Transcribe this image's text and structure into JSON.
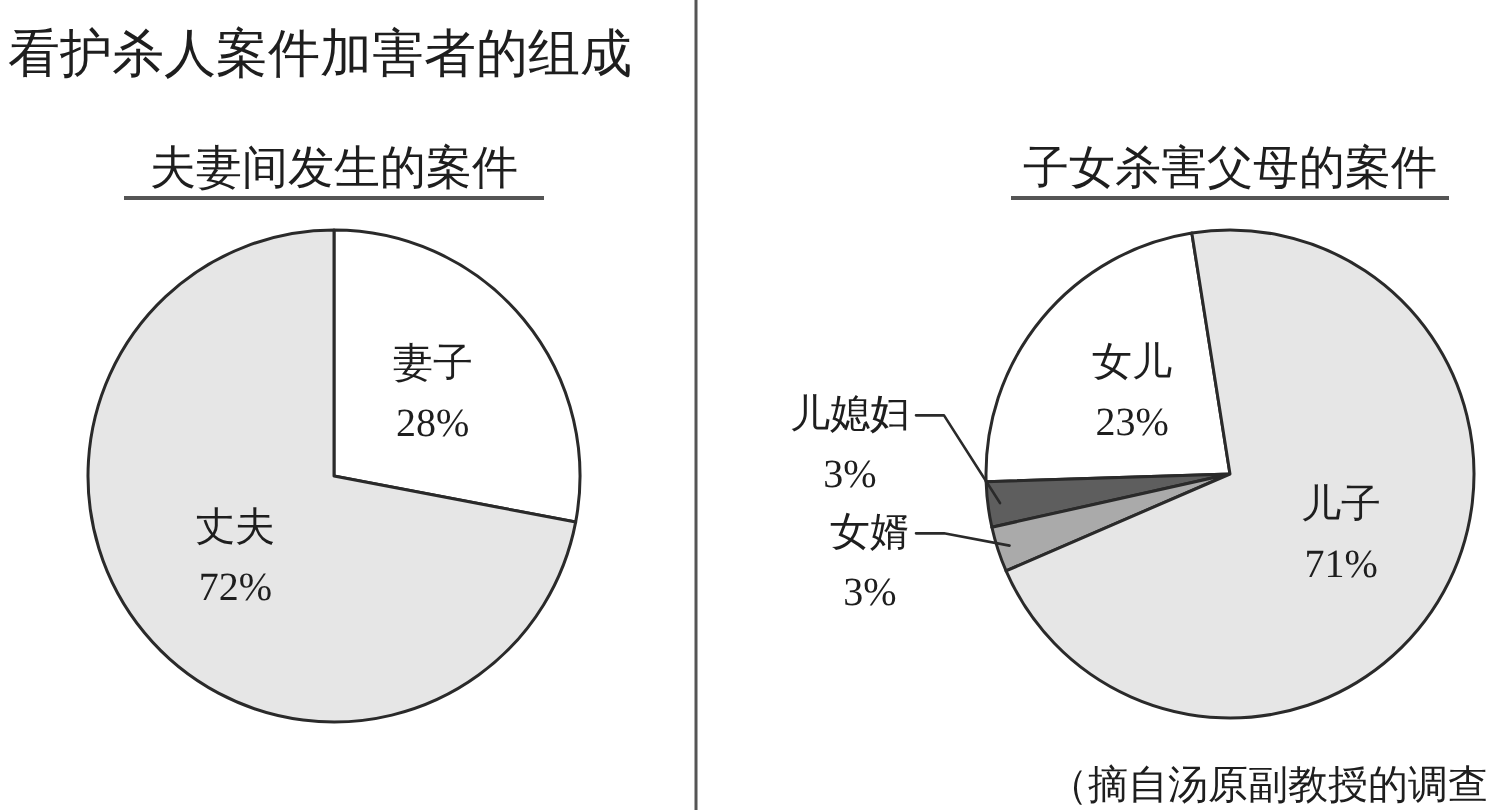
{
  "chart_data": [
    {
      "type": "pie",
      "title": "看护杀人案件加害者的组成",
      "subtitle": "夫妻间发生的案件",
      "categories": [
        "妻子",
        "丈夫"
      ],
      "values": [
        28,
        72
      ],
      "colors": [
        "#ffffff",
        "#e6e6e6"
      ],
      "value_labels": [
        "28%",
        "72%"
      ]
    },
    {
      "type": "pie",
      "title": "子女杀害父母的案件",
      "categories": [
        "女儿",
        "儿媳妇",
        "女婿",
        "儿子"
      ],
      "values": [
        23,
        3,
        3,
        71
      ],
      "colors": [
        "#ffffff",
        "#5e5e5e",
        "#aaaaaa",
        "#e6e6e6"
      ],
      "value_labels": [
        "23%",
        "3%",
        "3%",
        "71%"
      ],
      "annotations": [
        "（摘自汤原副教授的调查"
      ]
    }
  ]
}
